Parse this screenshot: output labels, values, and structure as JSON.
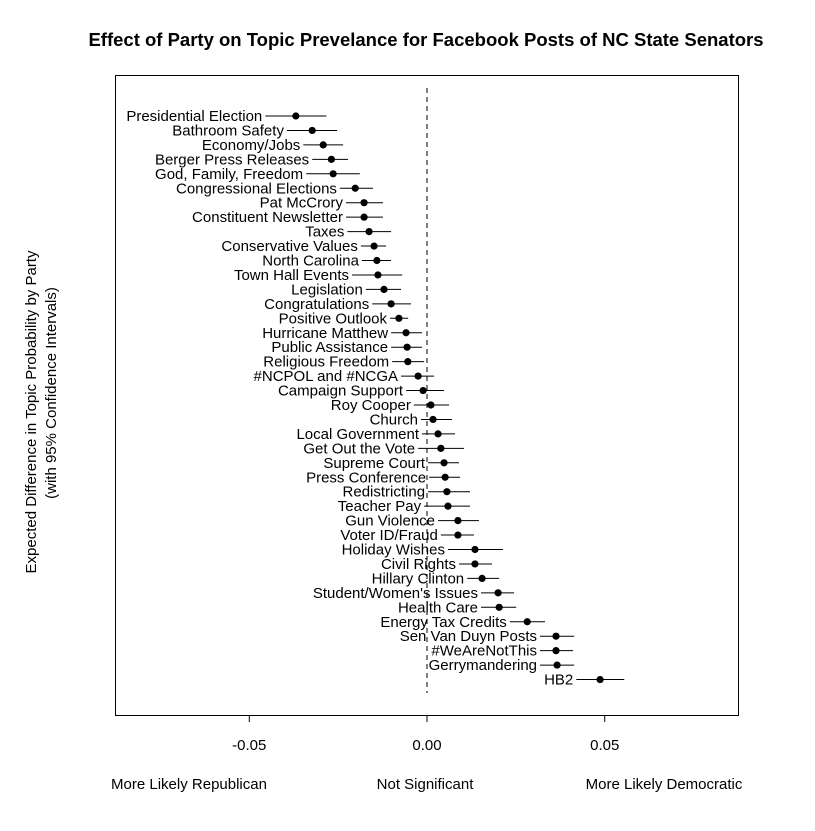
{
  "chart_data": {
    "type": "scatter",
    "title": "Effect of Party on Topic Prevelance for Facebook Posts of NC State Senators",
    "xlabel": "",
    "ylabel": "Expected Difference in Topic Probability by Party",
    "ylabel2": "(with 95% Confidence Intervals)",
    "xlim": [
      -0.0875,
      0.0875
    ],
    "xticks": [
      -0.05,
      0.0,
      0.05
    ],
    "xtick_labels": [
      "-0.05",
      "0.00",
      "0.05"
    ],
    "reference_line": 0.0,
    "bottom_labels": [
      "More Likely Republican",
      "Not Significant",
      "More Likely Democratic"
    ],
    "grid": false,
    "topics": [
      {
        "label": "Presidential Election",
        "estimate": -0.0369,
        "lower": -0.0455,
        "upper": -0.0283
      },
      {
        "label": "Bathroom Safety",
        "estimate": -0.0323,
        "lower": -0.0394,
        "upper": -0.0253
      },
      {
        "label": "Economy/Jobs",
        "estimate": -0.0292,
        "lower": -0.0348,
        "upper": -0.0236
      },
      {
        "label": "Berger Press Releases",
        "estimate": -0.0269,
        "lower": -0.0323,
        "upper": -0.0222
      },
      {
        "label": "God, Family, Freedom",
        "estimate": -0.0264,
        "lower": -0.034,
        "upper": -0.0189
      },
      {
        "label": "Congressional Elections",
        "estimate": -0.0202,
        "lower": -0.0245,
        "upper": -0.0152
      },
      {
        "label": "Pat McCrory",
        "estimate": -0.0177,
        "lower": -0.0228,
        "upper": -0.0124
      },
      {
        "label": "Constituent Newsletter",
        "estimate": -0.0177,
        "lower": -0.0228,
        "upper": -0.0124
      },
      {
        "label": "Taxes",
        "estimate": -0.0163,
        "lower": -0.0224,
        "upper": -0.0101
      },
      {
        "label": "Conservative Values",
        "estimate": -0.0149,
        "lower": -0.0186,
        "upper": -0.0115
      },
      {
        "label": "North Carolina",
        "estimate": -0.0141,
        "lower": -0.0183,
        "upper": -0.0101
      },
      {
        "label": "Town Hall Events",
        "estimate": -0.0138,
        "lower": -0.0211,
        "upper": -0.007
      },
      {
        "label": "Legislation",
        "estimate": -0.0121,
        "lower": -0.0172,
        "upper": -0.0073
      },
      {
        "label": "Congratulations",
        "estimate": -0.0101,
        "lower": -0.0154,
        "upper": -0.0045
      },
      {
        "label": "Positive Outlook",
        "estimate": -0.0079,
        "lower": -0.0104,
        "upper": -0.0053
      },
      {
        "label": "Hurricane Matthew",
        "estimate": -0.0059,
        "lower": -0.0101,
        "upper": -0.0014
      },
      {
        "label": "Public Assistance",
        "estimate": -0.0056,
        "lower": -0.0101,
        "upper": -0.0014
      },
      {
        "label": "Religious Freedom",
        "estimate": -0.0054,
        "lower": -0.0098,
        "upper": -0.0008
      },
      {
        "label": "#NCPOL and #NCGA",
        "estimate": -0.0025,
        "lower": -0.0073,
        "upper": 0.002
      },
      {
        "label": "Campaign Support",
        "estimate": -0.0011,
        "lower": -0.0059,
        "upper": 0.0048
      },
      {
        "label": "Roy Cooper",
        "estimate": 0.0011,
        "lower": -0.0037,
        "upper": 0.0062
      },
      {
        "label": "Church",
        "estimate": 0.0017,
        "lower": -0.0017,
        "upper": 0.007
      },
      {
        "label": "Local Government",
        "estimate": 0.0031,
        "lower": -0.0014,
        "upper": 0.0079
      },
      {
        "label": "Get Out the Vote",
        "estimate": 0.0039,
        "lower": -0.0025,
        "upper": 0.0104
      },
      {
        "label": "Supreme Court",
        "estimate": 0.0048,
        "lower": 0.0003,
        "upper": 0.009
      },
      {
        "label": "Press Conference",
        "estimate": 0.0051,
        "lower": 0.0006,
        "upper": 0.0093
      },
      {
        "label": "Redistricting",
        "estimate": 0.0056,
        "lower": 0.0003,
        "upper": 0.0121
      },
      {
        "label": "Teacher Pay",
        "estimate": 0.0059,
        "lower": -0.0008,
        "upper": 0.0121
      },
      {
        "label": "Gun Violence",
        "estimate": 0.0087,
        "lower": 0.0031,
        "upper": 0.0146
      },
      {
        "label": "Voter ID/Fraud",
        "estimate": 0.0087,
        "lower": 0.0039,
        "upper": 0.0132
      },
      {
        "label": "Holiday Wishes",
        "estimate": 0.0135,
        "lower": 0.0059,
        "upper": 0.0214
      },
      {
        "label": "Civil Rights",
        "estimate": 0.0135,
        "lower": 0.009,
        "upper": 0.0183
      },
      {
        "label": "Hillary Clinton",
        "estimate": 0.0155,
        "lower": 0.0113,
        "upper": 0.0203
      },
      {
        "label": "Student/Women's Issues",
        "estimate": 0.02,
        "lower": 0.0152,
        "upper": 0.0245
      },
      {
        "label": "Health Care",
        "estimate": 0.0203,
        "lower": 0.0152,
        "upper": 0.0251
      },
      {
        "label": "Energy Tax Credits",
        "estimate": 0.0282,
        "lower": 0.0233,
        "upper": 0.0332
      },
      {
        "label": "Sen Van Duyn Posts",
        "estimate": 0.0363,
        "lower": 0.0318,
        "upper": 0.0414
      },
      {
        "label": "#WeAreNotThis",
        "estimate": 0.0363,
        "lower": 0.0318,
        "upper": 0.0411
      },
      {
        "label": "Gerrymandering",
        "estimate": 0.0366,
        "lower": 0.0318,
        "upper": 0.0414
      },
      {
        "label": "HB2",
        "estimate": 0.0487,
        "lower": 0.042,
        "upper": 0.0555
      }
    ]
  }
}
